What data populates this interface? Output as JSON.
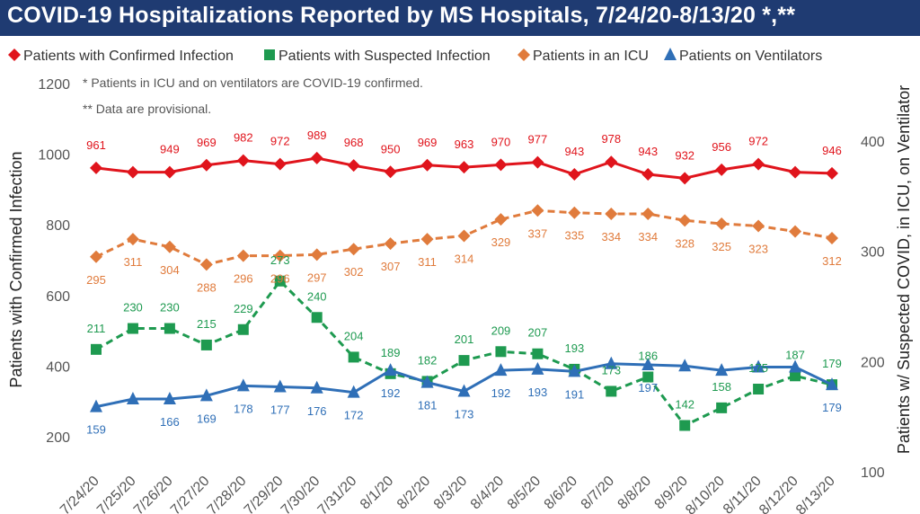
{
  "title": "COVID-19 Hospitalizations Reported by MS Hospitals, 7/24/20-8/13/20 *,**",
  "notes": [
    "* Patients in ICU and on ventilators are COVID-19 confirmed.",
    "** Data are provisional."
  ],
  "colors": {
    "title_bar": "#1f3b72",
    "confirmed": "#e0141c",
    "suspected": "#1e9a50",
    "icu": "#e07b3c",
    "ventilators": "#2f6fb7"
  },
  "chart_data": {
    "type": "line",
    "categories": [
      "7/24/20",
      "7/25/20",
      "7/26/20",
      "7/27/20",
      "7/28/20",
      "7/29/20",
      "7/30/20",
      "7/31/20",
      "8/1/20",
      "8/2/20",
      "8/3/20",
      "8/4/20",
      "8/5/20",
      "8/6/20",
      "8/7/20",
      "8/8/20",
      "8/9/20",
      "8/10/20",
      "8/11/20",
      "8/12/20",
      "8/13/20"
    ],
    "ylabel_left": "Patients with Confirmed Infection",
    "ylabel_right": "Patients w/ Suspected COVID, in ICU, on Ventilator",
    "ylim_left": [
      200,
      1200
    ],
    "ylim_right": [
      100,
      450
    ],
    "yticks_left": [
      200,
      400,
      600,
      800,
      1000,
      1200
    ],
    "yticks_right": [
      100,
      200,
      300,
      400
    ],
    "legend_position": "top",
    "series": [
      {
        "name": "Patients with Confirmed Infection",
        "axis": "left",
        "marker": "diamond",
        "dashed": false,
        "color_key": "confirmed",
        "values": [
          961,
          949,
          949,
          969,
          982,
          972,
          989,
          968,
          950,
          969,
          963,
          970,
          977,
          943,
          978,
          943,
          932,
          956,
          972,
          949,
          946
        ],
        "labels": [
          "961",
          "",
          "949",
          "969",
          "982",
          "972",
          "989",
          "968",
          "950",
          "969",
          "963",
          "970",
          "977",
          "943",
          "978",
          "943",
          "932",
          "956",
          "972",
          "",
          "946"
        ]
      },
      {
        "name": "Patients with Suspected Infection",
        "axis": "right",
        "marker": "square",
        "dashed": true,
        "color_key": "suspected",
        "values": [
          211,
          230,
          230,
          215,
          229,
          273,
          240,
          204,
          189,
          182,
          201,
          209,
          207,
          193,
          173,
          186,
          142,
          158,
          175,
          187,
          179
        ],
        "labels": [
          "211",
          "230",
          "230",
          "215",
          "229",
          "273",
          "240",
          "204",
          "189",
          "182",
          "201",
          "209",
          "207",
          "193",
          "173",
          "186",
          "142",
          "158",
          "175",
          "187",
          "179"
        ]
      },
      {
        "name": "Patients in an ICU",
        "axis": "right",
        "marker": "diamond",
        "dashed": true,
        "color_key": "icu",
        "values": [
          295,
          311,
          304,
          288,
          296,
          296,
          297,
          302,
          307,
          311,
          314,
          329,
          337,
          335,
          334,
          334,
          328,
          325,
          323,
          318,
          312
        ],
        "labels": [
          "295",
          "311",
          "304",
          "288",
          "296",
          "296",
          "297",
          "302",
          "307",
          "311",
          "314",
          "329",
          "337",
          "335",
          "334",
          "334",
          "328",
          "325",
          "323",
          "",
          "312"
        ]
      },
      {
        "name": "Patients on Ventilators",
        "axis": "right",
        "marker": "triangle",
        "dashed": false,
        "color_key": "ventilators",
        "values": [
          159,
          166,
          166,
          169,
          178,
          177,
          176,
          172,
          192,
          181,
          173,
          192,
          193,
          191,
          198,
          197,
          196,
          192,
          195,
          195,
          179
        ],
        "labels": [
          "159",
          "",
          "166",
          "169",
          "178",
          "177",
          "176",
          "172",
          "192",
          "181",
          "173",
          "192",
          "193",
          "191",
          "",
          "197",
          "",
          "",
          "",
          "",
          "179"
        ]
      }
    ]
  }
}
